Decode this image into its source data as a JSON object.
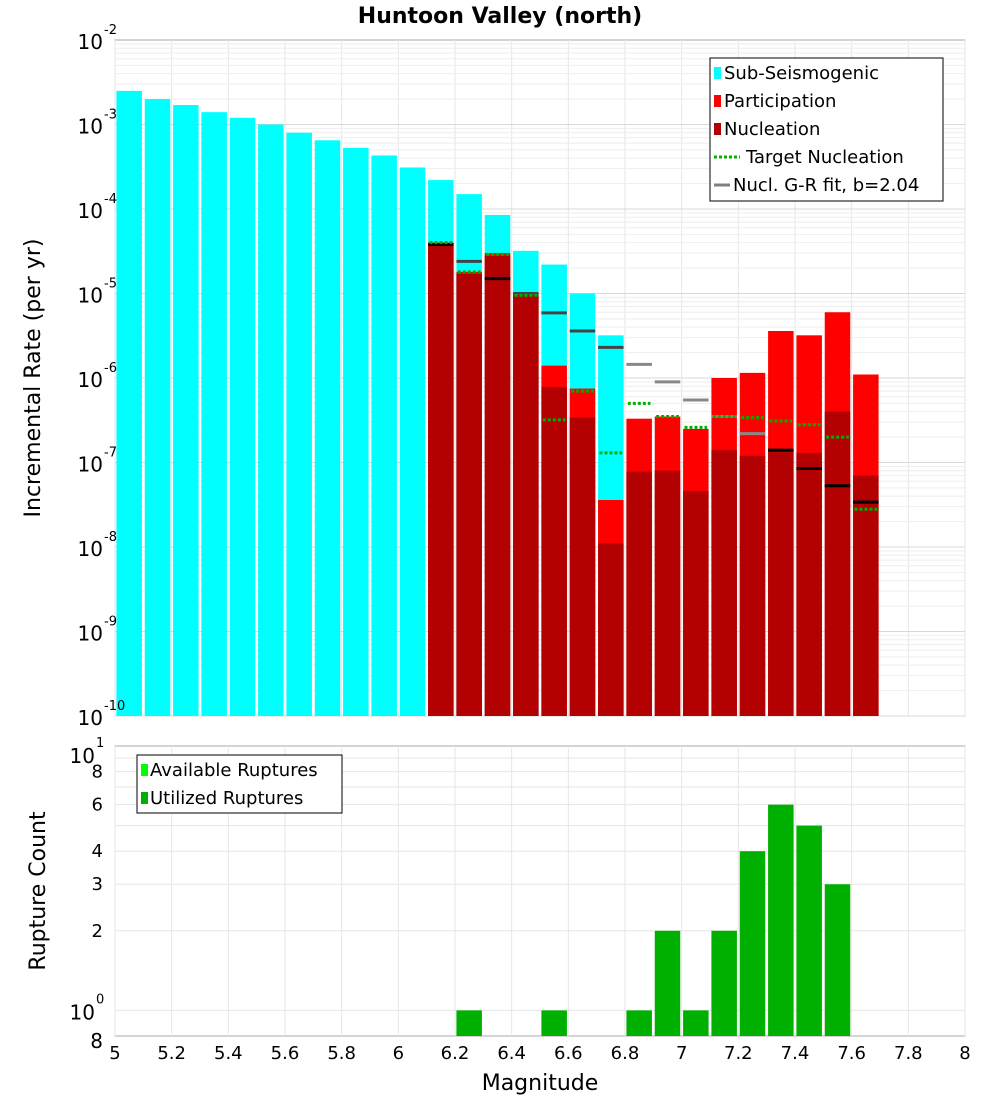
{
  "chart_data": [
    {
      "type": "bar",
      "title": "Huntoon Valley (north)",
      "ylabel": "Incremental Rate (per yr)",
      "xlabel": "",
      "yscale": "log",
      "ylim": [
        1e-10,
        0.01
      ],
      "xlim": [
        5,
        8
      ],
      "y_tick_bases": [
        "10",
        "10",
        "10",
        "10",
        "10",
        "10",
        "10",
        "10",
        "10"
      ],
      "y_tick_exponents": [
        "-2",
        "-3",
        "-4",
        "-5",
        "-6",
        "-7",
        "-8",
        "-9",
        "-10"
      ],
      "legend": {
        "placement": "top-right",
        "items": [
          {
            "label": "Sub-Seismogenic",
            "color": "#00ffff",
            "kind": "box"
          },
          {
            "label": "Participation",
            "color": "#ff0000",
            "kind": "box"
          },
          {
            "label": "Nucleation",
            "color": "#b30000",
            "kind": "box"
          },
          {
            "label": "Target Nucleation",
            "color": "#00b000",
            "kind": "dotted"
          },
          {
            "label": "Nucl. G-R fit, b=2.04",
            "color": "#808080",
            "kind": "line"
          }
        ]
      },
      "series": [
        {
          "name": "Sub-Seismogenic",
          "color": "#00ffff",
          "x": [
            5.05,
            5.15,
            5.25,
            5.35,
            5.45,
            5.55,
            5.65,
            5.75,
            5.85,
            5.95,
            6.05,
            6.15,
            6.25,
            6.35,
            6.45,
            6.55,
            6.65,
            6.75
          ],
          "values": [
            0.0025,
            0.002,
            0.0017,
            0.0014,
            0.0012,
            0.001,
            0.0008,
            0.00065,
            0.00053,
            0.00043,
            0.00031,
            0.00022,
            0.00015,
            8.5e-05,
            3.2e-05,
            2.2e-05,
            1e-05,
            3.2e-06
          ]
        },
        {
          "name": "Participation",
          "color": "#ff0000",
          "x": [
            6.15,
            6.25,
            6.35,
            6.45,
            6.55,
            6.65,
            6.75,
            6.85,
            6.95,
            7.05,
            7.15,
            7.25,
            7.35,
            7.45,
            7.55,
            7.65
          ],
          "values": [
            4e-05,
            1.8e-05,
            3e-05,
            1e-05,
            1.4e-06,
            7.5e-07,
            3.6e-08,
            3.3e-07,
            3.5e-07,
            2.5e-07,
            1e-06,
            1.15e-06,
            3.6e-06,
            3.2e-06,
            6e-06,
            1.1e-06
          ]
        },
        {
          "name": "Nucleation",
          "color": "#b30000",
          "x": [
            6.15,
            6.25,
            6.35,
            6.45,
            6.55,
            6.65,
            6.75,
            6.85,
            6.95,
            7.05,
            7.15,
            7.25,
            7.35,
            7.45,
            7.55,
            7.65
          ],
          "values": [
            3.8e-05,
            1.7e-05,
            2.8e-05,
            9.5e-06,
            7.8e-07,
            3.4e-07,
            1.1e-08,
            7.8e-08,
            8e-08,
            4.6e-08,
            1.4e-07,
            1.2e-07,
            1.4e-07,
            1.3e-07,
            4e-07,
            7e-08
          ]
        },
        {
          "name": "Target Nucleation",
          "color": "#00b000",
          "x": [
            6.15,
            6.25,
            6.35,
            6.45,
            6.55,
            6.65,
            6.75,
            6.85,
            6.95,
            7.05,
            7.15,
            7.25,
            7.35,
            7.45,
            7.55,
            7.65
          ],
          "values": [
            4e-05,
            1.8e-05,
            2.9e-05,
            9.5e-06,
            3.2e-07,
            7e-07,
            1.3e-07,
            5e-07,
            3.5e-07,
            2.6e-07,
            3.5e-07,
            3.4e-07,
            3.1e-07,
            2.8e-07,
            2e-07,
            2.8e-08
          ]
        },
        {
          "name": "Nucl. G-R fit, b=2.04",
          "color": "#808080",
          "x": [
            6.15,
            6.25,
            6.35,
            6.45,
            6.55,
            6.65,
            6.75,
            6.85,
            6.95,
            7.05,
            7.15,
            7.25,
            7.35,
            7.45,
            7.55,
            7.65
          ],
          "values": [
            3.8e-05,
            2.4e-05,
            1.5e-05,
            1e-05,
            5.9e-06,
            3.6e-06,
            2.3e-06,
            1.45e-06,
            9e-07,
            5.5e-07,
            3.5e-07,
            2.2e-07,
            1.4e-07,
            8.5e-08,
            5.3e-08,
            3.4e-08
          ]
        }
      ]
    },
    {
      "type": "bar",
      "title": "",
      "xlabel": "Magnitude",
      "ylabel": "Rupture Count",
      "yscale": "log",
      "ylim": [
        0.8,
        10
      ],
      "xlim": [
        5,
        8
      ],
      "x_ticks": [
        "5",
        "5.2",
        "5.4",
        "5.6",
        "5.8",
        "6",
        "6.2",
        "6.4",
        "6.6",
        "6.8",
        "7",
        "7.2",
        "7.4",
        "7.6",
        "7.8",
        "8"
      ],
      "y_ticks_minor": [
        {
          "v": 2,
          "label": "2"
        },
        {
          "v": 3,
          "label": "3"
        },
        {
          "v": 4,
          "label": "4"
        },
        {
          "v": 6,
          "label": "6"
        },
        {
          "v": 8,
          "label": "8"
        }
      ],
      "y_tick_top": {
        "base": "10",
        "exp": "1"
      },
      "y_tick_one": {
        "base": "10",
        "exp": "0"
      },
      "y_tick_bottom": "8",
      "legend": {
        "placement": "top-left",
        "items": [
          {
            "label": "Available Ruptures",
            "color": "#00ff00",
            "kind": "box"
          },
          {
            "label": "Utilized Ruptures",
            "color": "#00b000",
            "kind": "box"
          }
        ]
      },
      "series": [
        {
          "name": "Utilized Ruptures",
          "color": "#00b000",
          "x": [
            6.25,
            6.55,
            6.85,
            6.95,
            7.05,
            7.15,
            7.25,
            7.35,
            7.45,
            7.55
          ],
          "values": [
            1,
            1,
            1,
            2,
            1,
            2,
            4,
            6,
            5,
            3
          ]
        }
      ]
    }
  ]
}
